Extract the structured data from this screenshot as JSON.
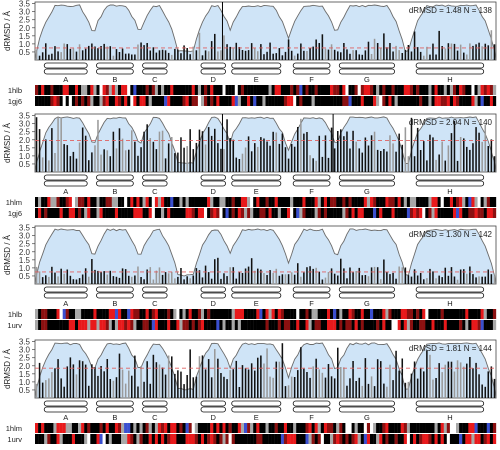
{
  "figure": {
    "colors": {
      "area_fill": "#cfe4f7",
      "area_line": "#6b6b6b",
      "bar": "#111111",
      "bar_light": "#9a9a9a",
      "mean_line": "#e06060",
      "helix_box": "#ffffff",
      "track_black": "#000000",
      "track_red": "#e8191b",
      "track_dark_red": "#8b1010",
      "track_gray": "#a8a8a8",
      "track_blue": "#3a4fd0",
      "track_white": "#ffffff"
    },
    "helix_labels": [
      "A",
      "B",
      "C",
      "D",
      "E",
      "F",
      "G",
      "H"
    ]
  },
  "chart_data": [
    {
      "type": "bar",
      "ylabel": "dRMSD / Å",
      "annotation": "dRMSD = 1.48  N = 138",
      "mean": 0.75,
      "ylim": [
        0,
        3.6
      ],
      "yticks": [
        0.5,
        1.0,
        1.5,
        2.0,
        2.5,
        3.0,
        3.5
      ],
      "track_labels": [
        "1hlb",
        "1gj6"
      ],
      "vertical_markers": [
        61
      ]
    },
    {
      "type": "bar",
      "ylabel": "dRMSD / Å",
      "annotation": "dRMSD = 2.04  N = 140",
      "mean": 1.95,
      "ylim": [
        0,
        3.6
      ],
      "yticks": [
        0.5,
        1.0,
        1.5,
        2.0,
        2.5,
        3.0,
        3.5
      ],
      "track_labels": [
        "1hlm",
        "1gj6"
      ],
      "vertical_markers": [
        61,
        97
      ]
    },
    {
      "type": "bar",
      "ylabel": "dRMSD / Å",
      "annotation": "dRMSD = 1.30  N = 142",
      "mean": 0.75,
      "ylim": [
        0,
        3.6
      ],
      "yticks": [
        0.5,
        1.0,
        1.5,
        2.0,
        2.5,
        3.0,
        3.5
      ],
      "track_labels": [
        "1hlb",
        "1urv"
      ],
      "vertical_markers": []
    },
    {
      "type": "bar",
      "ylabel": "dRMSD / Å",
      "annotation": "dRMSD = 1.81  N = 144",
      "mean": 1.85,
      "ylim": [
        0,
        3.6
      ],
      "yticks": [
        0.5,
        1.0,
        1.5,
        2.0,
        2.5,
        3.0,
        3.5
      ],
      "track_labels": [
        "1hlm",
        "1urv"
      ],
      "vertical_markers": []
    }
  ]
}
